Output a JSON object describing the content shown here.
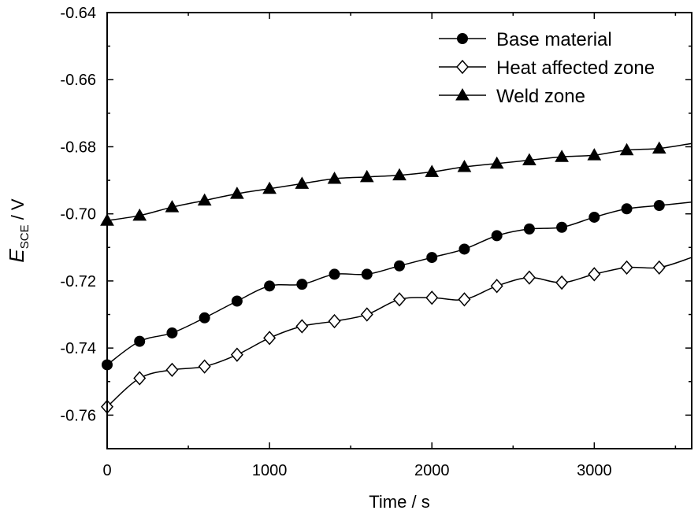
{
  "chart_data": {
    "type": "line",
    "xlabel": "Time / s",
    "ylabel": {
      "symbol": "E",
      "subscript": "SCE",
      "unit": " / V"
    },
    "xlim": [
      0,
      3600
    ],
    "ylim": [
      -0.77,
      -0.64
    ],
    "xticks": [
      0,
      1000,
      2000,
      3000
    ],
    "yticks": [
      -0.76,
      -0.74,
      -0.72,
      -0.7,
      -0.68,
      -0.66,
      -0.64
    ],
    "ytick_labels": [
      "-0.76",
      "-0.74",
      "-0.72",
      "-0.70",
      "-0.68",
      "-0.66",
      "-0.64"
    ],
    "grid": false,
    "legend_position": "top-right",
    "series": [
      {
        "name": "Base material",
        "marker": "filled-circle",
        "x": [
          0,
          200,
          400,
          600,
          800,
          1000,
          1200,
          1400,
          1600,
          1800,
          2000,
          2200,
          2400,
          2600,
          2800,
          3000,
          3200,
          3400,
          3600
        ],
        "y": [
          -0.745,
          -0.738,
          -0.7355,
          -0.731,
          -0.726,
          -0.7215,
          -0.721,
          -0.718,
          -0.718,
          -0.7155,
          -0.713,
          -0.7105,
          -0.7065,
          -0.7045,
          -0.704,
          -0.701,
          -0.6985,
          -0.6975,
          -0.6965
        ]
      },
      {
        "name": "Heat affected zone",
        "marker": "open-diamond",
        "x": [
          0,
          200,
          400,
          600,
          800,
          1000,
          1200,
          1400,
          1600,
          1800,
          2000,
          2200,
          2400,
          2600,
          2800,
          3000,
          3200,
          3400,
          3600
        ],
        "y": [
          -0.7575,
          -0.749,
          -0.7465,
          -0.7455,
          -0.742,
          -0.737,
          -0.7335,
          -0.732,
          -0.73,
          -0.7255,
          -0.725,
          -0.7255,
          -0.7215,
          -0.719,
          -0.7205,
          -0.718,
          -0.716,
          -0.716,
          -0.713
        ]
      },
      {
        "name": "Weld zone",
        "marker": "filled-triangle",
        "x": [
          0,
          200,
          400,
          600,
          800,
          1000,
          1200,
          1400,
          1600,
          1800,
          2000,
          2200,
          2400,
          2600,
          2800,
          3000,
          3200,
          3400,
          3600
        ],
        "y": [
          -0.702,
          -0.7005,
          -0.698,
          -0.696,
          -0.694,
          -0.6925,
          -0.691,
          -0.6895,
          -0.689,
          -0.6885,
          -0.6875,
          -0.686,
          -0.685,
          -0.684,
          -0.683,
          -0.6825,
          -0.681,
          -0.6805,
          -0.679
        ]
      }
    ]
  }
}
